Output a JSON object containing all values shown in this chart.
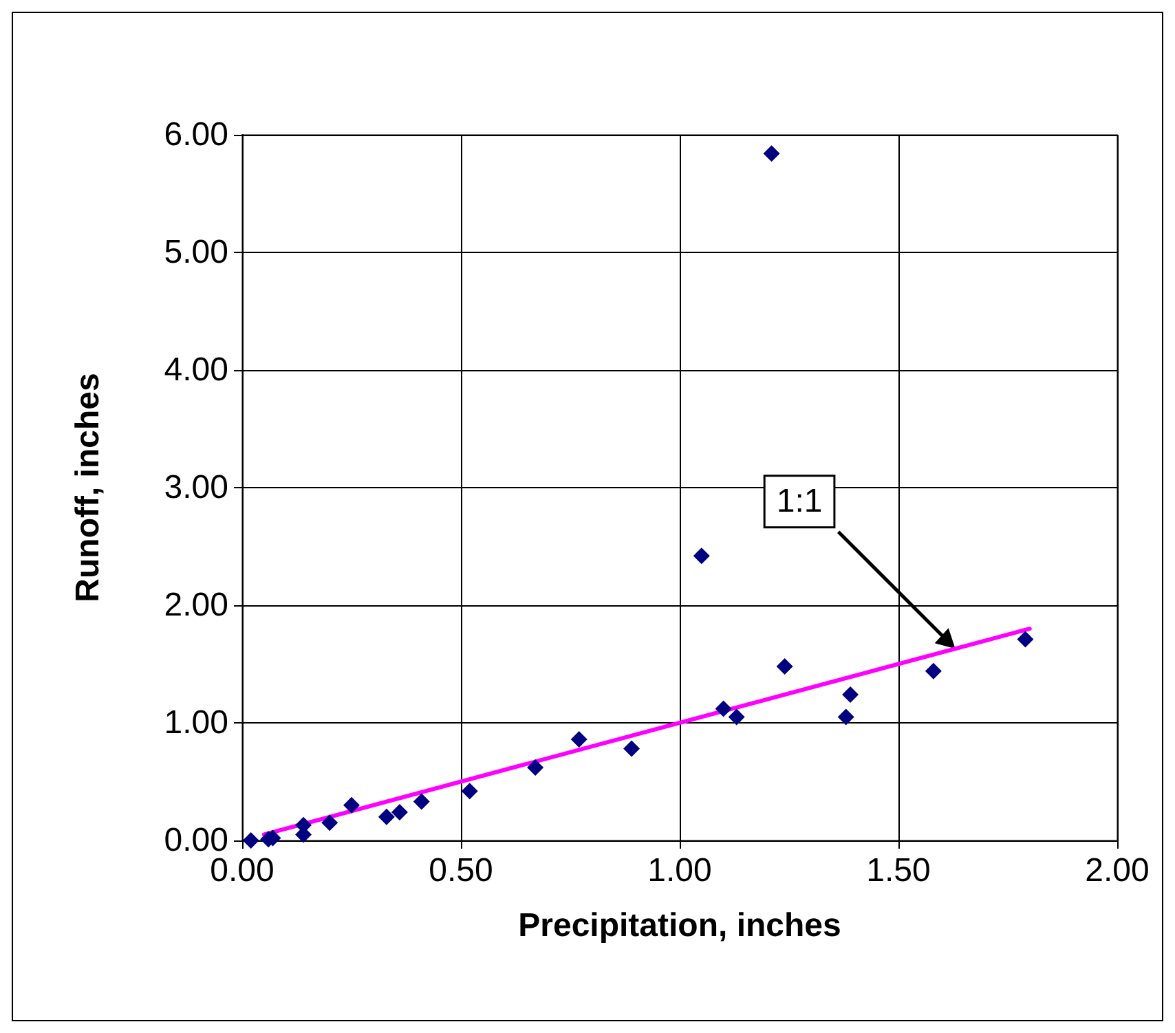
{
  "chart_data": {
    "type": "scatter",
    "xlabel": "Precipitation, inches",
    "ylabel": "Runoff, inches",
    "xlim": [
      0,
      2
    ],
    "ylim": [
      0,
      6
    ],
    "xticks": [
      {
        "value": 0,
        "label": "0.00"
      },
      {
        "value": 0.5,
        "label": "0.50"
      },
      {
        "value": 1,
        "label": "1.00"
      },
      {
        "value": 1.5,
        "label": "1.50"
      },
      {
        "value": 2,
        "label": "2.00"
      }
    ],
    "yticks": [
      {
        "value": 0,
        "label": "0.00"
      },
      {
        "value": 1,
        "label": "1.00"
      },
      {
        "value": 2,
        "label": "2.00"
      },
      {
        "value": 3,
        "label": "3.00"
      },
      {
        "value": 4,
        "label": "4.00"
      },
      {
        "value": 5,
        "label": "5.00"
      },
      {
        "value": 6,
        "label": "6.00"
      }
    ],
    "grid": true,
    "series": [
      {
        "color": "#000080",
        "marker": "diamond",
        "x": [
          0.02,
          0.06,
          0.07,
          0.14,
          0.14,
          0.2,
          0.25,
          0.33,
          0.36,
          0.41,
          0.52,
          0.67,
          0.77,
          0.89,
          1.05,
          1.1,
          1.13,
          1.21,
          1.24,
          1.38,
          1.39,
          1.58,
          1.79
        ],
        "values": [
          0.0,
          0.01,
          0.02,
          0.13,
          0.05,
          0.15,
          0.3,
          0.2,
          0.24,
          0.33,
          0.42,
          0.62,
          0.86,
          0.78,
          2.42,
          1.12,
          1.05,
          5.84,
          1.48,
          1.05,
          1.24,
          1.44,
          1.71
        ]
      },
      {
        "type": "line",
        "color": "#ff00ff",
        "marker": "none",
        "line_style": "solid",
        "x": [
          0.05,
          1.8
        ],
        "values": [
          0.05,
          1.8
        ]
      }
    ],
    "annotations": [
      {
        "text": "1:1",
        "x": 1.63,
        "y": 1.63
      }
    ]
  }
}
